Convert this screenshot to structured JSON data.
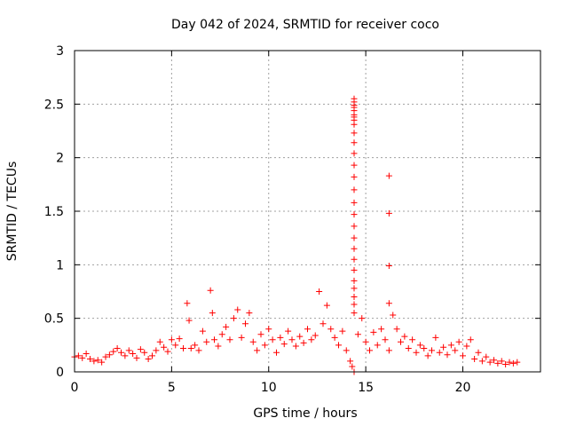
{
  "chart_data": {
    "type": "scatter",
    "title": "Day 042 of 2024, SRMTID for receiver coco",
    "xlabel": "GPS time / hours",
    "ylabel": "SRMTID / TECUs",
    "xlim": [
      0,
      24
    ],
    "ylim": [
      0,
      3
    ],
    "x_ticks": [
      0,
      5,
      10,
      15,
      20
    ],
    "x_tick_labels": [
      "0",
      "5",
      "10",
      "15",
      "20"
    ],
    "y_ticks": [
      0,
      0.5,
      1,
      1.5,
      2,
      2.5,
      3
    ],
    "y_tick_labels": [
      "0",
      "0.5",
      "1",
      "1.5",
      "2",
      "2.5",
      "3"
    ],
    "grid": true,
    "marker": "+",
    "series": [
      {
        "name": "SRMTID",
        "color": "#ff0000",
        "x": [
          0.0,
          0.2,
          0.4,
          0.6,
          0.8,
          1.0,
          1.2,
          1.4,
          1.6,
          1.8,
          2.0,
          2.2,
          2.4,
          2.6,
          2.8,
          3.0,
          3.2,
          3.4,
          3.6,
          3.8,
          4.0,
          4.2,
          4.4,
          4.6,
          4.8,
          5.0,
          5.2,
          5.4,
          5.6,
          5.8,
          5.9,
          6.0,
          6.2,
          6.4,
          6.6,
          6.8,
          7.0,
          7.1,
          7.2,
          7.4,
          7.6,
          7.8,
          8.0,
          8.2,
          8.4,
          8.6,
          8.8,
          9.0,
          9.2,
          9.4,
          9.6,
          9.8,
          10.0,
          10.2,
          10.4,
          10.6,
          10.8,
          11.0,
          11.2,
          11.4,
          11.6,
          11.8,
          12.0,
          12.2,
          12.4,
          12.6,
          12.8,
          13.0,
          13.2,
          13.4,
          13.6,
          13.8,
          14.0,
          14.2,
          14.3,
          14.4,
          14.4,
          14.4,
          14.4,
          14.4,
          14.4,
          14.4,
          14.4,
          14.4,
          14.4,
          14.4,
          14.4,
          14.4,
          14.4,
          14.4,
          14.4,
          14.4,
          14.4,
          14.4,
          14.4,
          14.4,
          14.4,
          14.4,
          14.4,
          14.4,
          14.4,
          14.4,
          14.4,
          14.6,
          14.8,
          15.0,
          15.2,
          15.4,
          15.6,
          15.8,
          16.0,
          16.2,
          16.2,
          16.2,
          16.2,
          16.2,
          16.4,
          16.6,
          16.8,
          17.0,
          17.2,
          17.4,
          17.6,
          17.8,
          18.0,
          18.2,
          18.4,
          18.6,
          18.8,
          19.0,
          19.2,
          19.4,
          19.6,
          19.8,
          20.0,
          20.2,
          20.4,
          20.6,
          20.8,
          21.0,
          21.2,
          21.4,
          21.6,
          21.8,
          22.0,
          22.2,
          22.4,
          22.6,
          22.8
        ],
        "y": [
          0.14,
          0.15,
          0.13,
          0.17,
          0.12,
          0.1,
          0.11,
          0.09,
          0.14,
          0.16,
          0.19,
          0.22,
          0.18,
          0.15,
          0.2,
          0.17,
          0.13,
          0.21,
          0.18,
          0.12,
          0.15,
          0.2,
          0.28,
          0.23,
          0.19,
          0.3,
          0.25,
          0.31,
          0.22,
          0.64,
          0.48,
          0.22,
          0.25,
          0.2,
          0.38,
          0.28,
          0.76,
          0.55,
          0.3,
          0.24,
          0.35,
          0.42,
          0.3,
          0.5,
          0.58,
          0.32,
          0.45,
          0.55,
          0.28,
          0.2,
          0.35,
          0.25,
          0.4,
          0.3,
          0.18,
          0.32,
          0.26,
          0.38,
          0.3,
          0.24,
          0.33,
          0.27,
          0.4,
          0.3,
          0.34,
          0.75,
          0.45,
          0.62,
          0.4,
          0.32,
          0.25,
          0.38,
          0.2,
          0.1,
          0.05,
          0.0,
          0.55,
          0.63,
          0.7,
          0.78,
          0.85,
          0.95,
          1.05,
          1.15,
          1.25,
          1.36,
          1.47,
          1.58,
          1.7,
          1.82,
          1.93,
          2.04,
          2.14,
          2.23,
          2.31,
          2.38,
          2.44,
          2.49,
          2.52,
          2.55,
          2.47,
          2.4,
          2.35,
          0.35,
          0.5,
          0.28,
          0.2,
          0.37,
          0.25,
          0.4,
          0.3,
          0.64,
          0.99,
          1.48,
          1.83,
          0.2,
          0.53,
          0.4,
          0.28,
          0.33,
          0.22,
          0.3,
          0.18,
          0.25,
          0.22,
          0.15,
          0.2,
          0.32,
          0.18,
          0.23,
          0.16,
          0.25,
          0.2,
          0.28,
          0.15,
          0.24,
          0.3,
          0.12,
          0.18,
          0.1,
          0.14,
          0.09,
          0.11,
          0.08,
          0.1,
          0.07,
          0.09,
          0.08,
          0.09
        ]
      }
    ]
  }
}
